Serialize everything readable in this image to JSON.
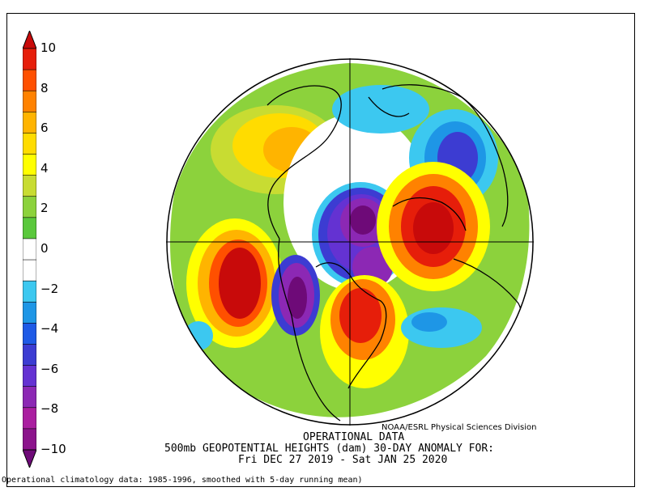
{
  "colorbar": {
    "ticks": [
      "10",
      "8",
      "6",
      "4",
      "2",
      "0",
      "−2",
      "−4",
      "−6",
      "−8",
      "−10"
    ],
    "colors": [
      "#6e0a78",
      "#8c148c",
      "#aa1ea0",
      "#8c28b4",
      "#6432d2",
      "#3c3cd2",
      "#1e5ae6",
      "#1e96e6",
      "#3cc8f0",
      "#ffffff",
      "#ffffff",
      "#5ac83c",
      "#8cd23c",
      "#c8dc32",
      "#ffff00",
      "#ffdc00",
      "#ffb400",
      "#ff8200",
      "#ff5000",
      "#e61e0a",
      "#c80a0a"
    ]
  },
  "credit": "NOAA/ESRL Physical Sciences Division",
  "title_lines": [
    "OPERATIONAL DATA",
    "500mb GEOPOTENTIAL HEIGHTS (dam)    30-DAY ANOMALY FOR:",
    "Fri DEC 27 2019 - Sat JAN 25 2020"
  ],
  "footnote": "Operational climatology data: 1985-1996, smoothed with 5-day running mean)"
}
